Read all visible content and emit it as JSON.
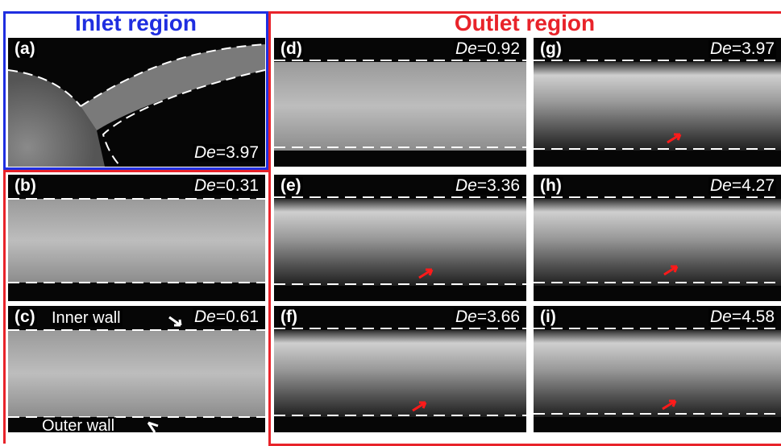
{
  "regions": {
    "inlet_title": "Inlet region",
    "outlet_title": "Outlet region",
    "inlet_color": "#1f2ee0",
    "outlet_color": "#e8232a"
  },
  "de_symbol": "De",
  "panels": {
    "a": {
      "label": "(a)",
      "de": "=3.97"
    },
    "b": {
      "label": "(b)",
      "de": "=0.31"
    },
    "c": {
      "label": "(c)",
      "de": "=0.61",
      "inner_wall": "Inner wall",
      "outer_wall": "Outer wall"
    },
    "d": {
      "label": "(d)",
      "de": "=0.92"
    },
    "e": {
      "label": "(e)",
      "de": "=3.36"
    },
    "f": {
      "label": "(f)",
      "de": "=3.66"
    },
    "g": {
      "label": "(g)",
      "de": "=3.97"
    },
    "h": {
      "label": "(h)",
      "de": "=4.27"
    },
    "i": {
      "label": "(i)",
      "de": "=4.58"
    }
  },
  "arrow_color": "#ff1a1a"
}
